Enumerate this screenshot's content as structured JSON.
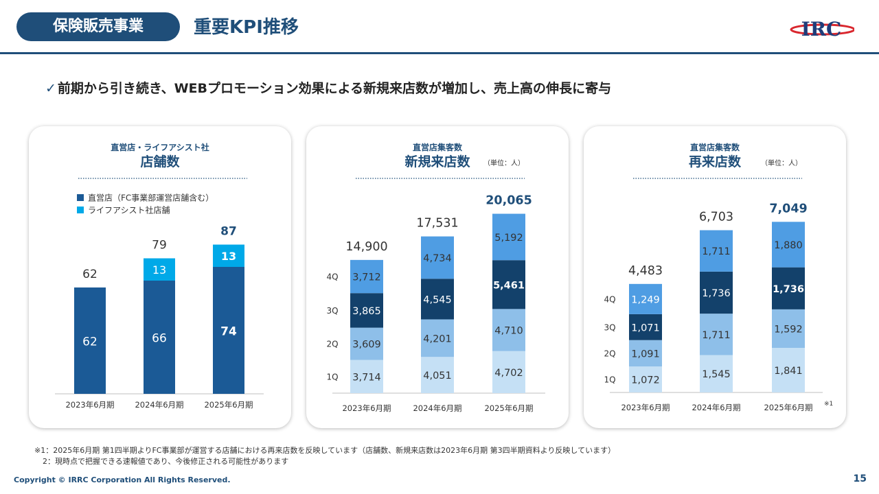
{
  "header": {
    "section_label": "保険販売事業",
    "title": "重要KPI推移",
    "logo_text": "IRC"
  },
  "headline": {
    "check": "✓",
    "text": "前期から引き続き、WEBプロモーション効果による新規来店数が増加し、売上高の伸長に寄与"
  },
  "colors": {
    "brand": "#1f4e79",
    "stores_direct": "#1b5a96",
    "stores_lifeassist": "#00a9e8",
    "q1": "#c5e0f5",
    "q2": "#8ebfe9",
    "q3": "#13416b",
    "q4": "#4f9de3"
  },
  "chart_data": [
    {
      "type": "bar",
      "subtitle": "直営店・ライフアシスト社",
      "title": "店舗数",
      "unit_note": "",
      "categories": [
        "2023年6月期",
        "2024年6月期",
        "2025年6月期"
      ],
      "series": [
        {
          "name": "直営店（FC事業部運営店舗含む）",
          "values": [
            62,
            66,
            74
          ]
        },
        {
          "name": "ライフアシスト社店舗",
          "values": [
            0,
            13,
            13
          ]
        }
      ],
      "totals": [
        62,
        79,
        87
      ],
      "ylim": [
        0,
        100
      ],
      "legend": "top-left",
      "stacked": true
    },
    {
      "type": "bar",
      "subtitle": "直営店集客数",
      "title": "新規来店数",
      "unit_note": "（単位：人）",
      "categories": [
        "2023年6月期",
        "2024年6月期",
        "2025年6月期"
      ],
      "quarter_labels": [
        "1Q",
        "2Q",
        "3Q",
        "4Q"
      ],
      "series": [
        {
          "name": "1Q",
          "values": [
            3714,
            4051,
            4702
          ]
        },
        {
          "name": "2Q",
          "values": [
            3609,
            4201,
            4710
          ]
        },
        {
          "name": "3Q",
          "values": [
            3865,
            4545,
            5461
          ]
        },
        {
          "name": "4Q",
          "values": [
            3712,
            4734,
            5192
          ]
        }
      ],
      "value_labels": [
        [
          "3,714",
          "4,051",
          "4,702"
        ],
        [
          "3,609",
          "4,201",
          "4,710"
        ],
        [
          "3,865",
          "4,545",
          "5,461"
        ],
        [
          "3,712",
          "4,734",
          "5,192"
        ]
      ],
      "totals": [
        "14,900",
        "17,531",
        "20,065"
      ],
      "total_values": [
        14900,
        17531,
        20065
      ],
      "ylim": [
        0,
        24000
      ],
      "stacked": true
    },
    {
      "type": "bar",
      "subtitle": "直営店集客数",
      "title": "再来店数",
      "unit_note": "（単位：人）",
      "footnote_mark": "※1",
      "categories": [
        "2023年6月期",
        "2024年6月期",
        "2025年6月期"
      ],
      "quarter_labels": [
        "1Q",
        "2Q",
        "3Q",
        "4Q"
      ],
      "series": [
        {
          "name": "1Q",
          "values": [
            1072,
            1545,
            1841
          ]
        },
        {
          "name": "2Q",
          "values": [
            1091,
            1711,
            1592
          ]
        },
        {
          "name": "3Q",
          "values": [
            1071,
            1736,
            1736
          ]
        },
        {
          "name": "4Q",
          "values": [
            1249,
            1711,
            1880
          ]
        }
      ],
      "value_labels": [
        [
          "1,072",
          "1,545",
          "1,841"
        ],
        [
          "1,091",
          "1,711",
          "1,592"
        ],
        [
          "1,071",
          "1,736",
          "1,736"
        ],
        [
          "1,249",
          "1,711",
          "1,880"
        ]
      ],
      "totals": [
        "4,483",
        "6,703",
        "7,049"
      ],
      "total_values": [
        4483,
        6703,
        7049
      ],
      "ylim": [
        0,
        8500
      ],
      "stacked": true
    }
  ],
  "footnotes": {
    "note1": "※1：2025年6月期 第1四半期よりFC事業部が運営する店舗における再来店数を反映しています（店舗数、新規来店数は2023年6月期 第3四半期資料より反映しています）",
    "note2": "2：現時点で把握できる速報値であり、今後修正される可能性があります"
  },
  "footer": {
    "copyright": "Copyright © IRRC Corporation All Rights Reserved.",
    "page_number": "15"
  }
}
